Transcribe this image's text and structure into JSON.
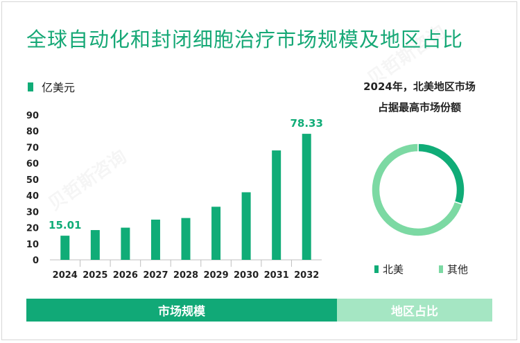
{
  "title": "全球自动化和封闭细胞治疗市场规模及地区占比",
  "unit_label": "亿美元",
  "pie_title_line1": "2024年，北美地区市场",
  "pie_title_line2": "占据最高市场份额",
  "tabs": {
    "left": "市场规模",
    "right": "地区占比"
  },
  "colors": {
    "bar": "#10ac77",
    "pie_main": "#10ac77",
    "pie_other": "#7cd9a3",
    "tab_left": "#11a977",
    "tab_right": "#a5e6c3"
  },
  "chart_data": [
    {
      "type": "bar",
      "categories": [
        "2024",
        "2025",
        "2026",
        "2027",
        "2028",
        "2029",
        "2030",
        "2031",
        "2032"
      ],
      "values": [
        15.01,
        18.5,
        20,
        25,
        26,
        33,
        42,
        68,
        78.33
      ],
      "data_labels": [
        "15.01",
        "",
        "",
        "",
        "",
        "",
        "",
        "",
        "78.33"
      ],
      "ylim": [
        0,
        90
      ],
      "yticks": [
        0,
        10,
        20,
        30,
        40,
        50,
        60,
        70,
        80,
        90
      ],
      "legend": [
        "亿美元"
      ],
      "grid": false
    },
    {
      "type": "pie",
      "labels": [
        "北美",
        "其他"
      ],
      "values": [
        0.3,
        0.7
      ],
      "donut": true
    }
  ]
}
